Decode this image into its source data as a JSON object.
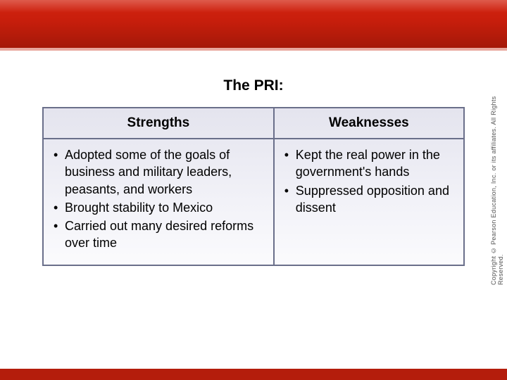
{
  "title": "The PRI:",
  "table": {
    "headers": {
      "left": "Strengths",
      "right": "Weaknesses"
    },
    "strengths": [
      "Adopted some of the goals of business and military leaders, peasants, and workers",
      "Brought stability to Mexico",
      "Carried out many desired reforms over time"
    ],
    "weaknesses": [
      "Kept the real power in the government's hands",
      "Suppressed opposition and dissent"
    ]
  },
  "copyright": "Copyright © Pearson Education, Inc. or its affiliates. All Rights Reserved.",
  "colors": {
    "banner_top": "#d32410",
    "banner_bottom": "#a01808",
    "table_border": "#6a6f8a",
    "table_bg_top": "#e4e4ee",
    "table_bg_bottom": "#fbfbfd",
    "bottom_bar": "#b41d0c",
    "text": "#000000"
  },
  "fonts": {
    "title_size_pt": 16,
    "header_size_pt": 14,
    "body_size_pt": 13,
    "copyright_size_pt": 7,
    "family": "Verdana"
  }
}
